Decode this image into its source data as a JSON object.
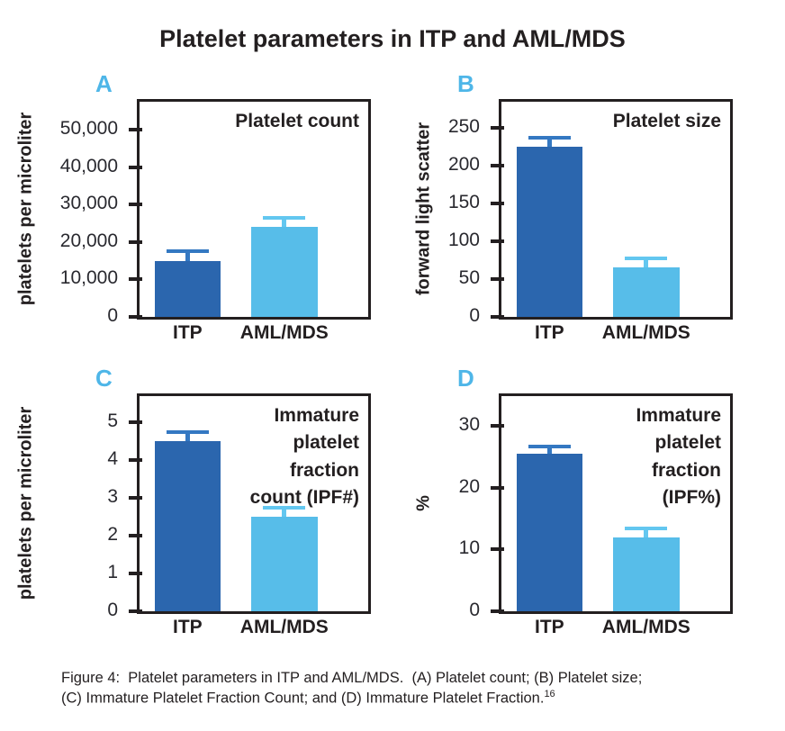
{
  "figure": {
    "title": "Platelet parameters in ITP and AML/MDS",
    "caption": {
      "line1": "Figure 4:  Platelet parameters in ITP and AML/MDS.  (A) Platelet count; (B) Platelet size;",
      "line2": "(C) Immature Platelet Fraction Count; and (D) Immature Platelet Fraction.",
      "reference": "16"
    }
  },
  "colors": {
    "itp_bar": "#2b66ae",
    "itp_error": "#3478c2",
    "amlmds_bar": "#57bde9",
    "amlmds_error": "#63c7f0",
    "panel_letter": "#4eb6e8",
    "axis": "#231f20",
    "tick_label": "#29292f"
  },
  "chart_data": [
    {
      "type": "bar",
      "panel_label": "A",
      "title": "Platelet count",
      "ylabel": "platelets per microliter",
      "categories": [
        "ITP",
        "AML/MDS"
      ],
      "values": [
        15000,
        24000
      ],
      "errors": [
        2500,
        2500
      ],
      "ylim": [
        0,
        57500
      ],
      "yticks": [
        0,
        10000,
        20000,
        30000,
        40000,
        50000
      ],
      "ytick_labels": [
        "0",
        "10,000",
        "20,000",
        "30,000",
        "40,000",
        "50,000"
      ],
      "grid": false,
      "legend": "none"
    },
    {
      "type": "bar",
      "panel_label": "B",
      "title": "Platelet size",
      "ylabel": "forward light scatter",
      "categories": [
        "ITP",
        "AML/MDS"
      ],
      "values": [
        225,
        66
      ],
      "errors": [
        12,
        12
      ],
      "ylim": [
        0,
        285
      ],
      "yticks": [
        0,
        50,
        100,
        150,
        200,
        250
      ],
      "ytick_labels": [
        "0",
        "50",
        "100",
        "150",
        "200",
        "250"
      ],
      "grid": false,
      "legend": "none"
    },
    {
      "type": "bar",
      "panel_label": "C",
      "title": "Immature\nplatelet\nfraction\ncount (IPF#)",
      "ylabel": "platelets per microliter",
      "categories": [
        "ITP",
        "AML/MDS"
      ],
      "values": [
        4.5,
        2.5
      ],
      "errors": [
        0.25,
        0.25
      ],
      "ylim": [
        0,
        5.7
      ],
      "yticks": [
        0,
        1,
        2,
        3,
        4,
        5
      ],
      "ytick_labels": [
        "0",
        "1",
        "2",
        "3",
        "4",
        "5"
      ],
      "grid": false,
      "legend": "none"
    },
    {
      "type": "bar",
      "panel_label": "D",
      "title": "Immature\nplatelet\nfraction\n(IPF%)",
      "ylabel": "%",
      "categories": [
        "ITP",
        "AML/MDS"
      ],
      "values": [
        25.5,
        12
      ],
      "errors": [
        1.2,
        1.4
      ],
      "ylim": [
        0,
        34.8
      ],
      "yticks": [
        0,
        10,
        20,
        30
      ],
      "ytick_labels": [
        "0",
        "10",
        "20",
        "30"
      ],
      "grid": false,
      "legend": "none"
    }
  ]
}
